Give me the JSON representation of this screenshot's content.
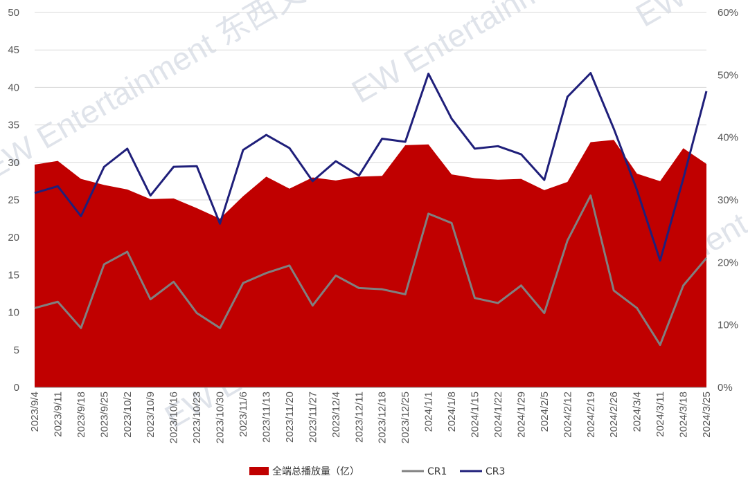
{
  "watermark": {
    "en": "EW Entertainment",
    "cn": "东西文娱"
  },
  "colors": {
    "area": "#C00000",
    "cr1": "#808080",
    "cr3": "#1F1F7A",
    "grid": "#D9D9D9"
  },
  "chart_data": {
    "type": "area",
    "title": "",
    "x": [
      "2023/9/4",
      "2023/9/11",
      "2023/9/18",
      "2023/9/25",
      "2023/10/2",
      "2023/10/9",
      "2023/10/16",
      "2023/10/23",
      "2023/10/30",
      "2023/11/6",
      "2023/11/13",
      "2023/11/20",
      "2023/11/27",
      "2023/12/4",
      "2023/12/11",
      "2023/12/18",
      "2023/12/25",
      "2024/1/1",
      "2024/1/8",
      "2024/1/15",
      "2024/1/22",
      "2024/1/29",
      "2024/2/5",
      "2024/2/12",
      "2024/2/19",
      "2024/2/26",
      "2024/3/4",
      "2024/3/11",
      "2024/3/18",
      "2024/3/25"
    ],
    "y_left": {
      "ticks": [
        0,
        5,
        10,
        15,
        20,
        25,
        30,
        35,
        40,
        45,
        50
      ],
      "range": [
        0,
        50
      ]
    },
    "y_right": {
      "ticks": [
        "0%",
        "10%",
        "20%",
        "30%",
        "40%",
        "50%",
        "60%"
      ],
      "range": [
        0,
        0.6
      ]
    },
    "grid": true,
    "legend": "bottom",
    "series": [
      {
        "name": "全端总播放量（亿）",
        "type": "area",
        "axis": "left",
        "values": [
          29.7,
          30.2,
          27.8,
          27.0,
          26.4,
          25.1,
          25.2,
          23.9,
          22.5,
          25.5,
          28.1,
          26.5,
          28.0,
          27.6,
          28.1,
          28.2,
          32.3,
          32.4,
          28.4,
          27.9,
          27.7,
          27.8,
          26.3,
          27.4,
          32.7,
          33.0,
          28.5,
          27.5,
          31.9,
          29.8
        ]
      },
      {
        "name": "CR1",
        "type": "line",
        "axis": "right",
        "values": [
          0.127,
          0.137,
          0.095,
          0.197,
          0.217,
          0.141,
          0.169,
          0.119,
          0.095,
          0.167,
          0.183,
          0.195,
          0.131,
          0.179,
          0.159,
          0.157,
          0.149,
          0.278,
          0.263,
          0.143,
          0.135,
          0.163,
          0.119,
          0.235,
          0.307,
          0.155,
          0.127,
          0.068,
          0.163,
          0.207
        ]
      },
      {
        "name": "CR3",
        "type": "line",
        "axis": "right",
        "values": [
          0.311,
          0.322,
          0.274,
          0.353,
          0.382,
          0.307,
          0.353,
          0.354,
          0.262,
          0.38,
          0.404,
          0.383,
          0.33,
          0.362,
          0.339,
          0.398,
          0.393,
          0.502,
          0.43,
          0.382,
          0.386,
          0.373,
          0.332,
          0.465,
          0.503,
          0.414,
          0.316,
          0.203,
          0.334,
          0.474
        ]
      }
    ]
  }
}
